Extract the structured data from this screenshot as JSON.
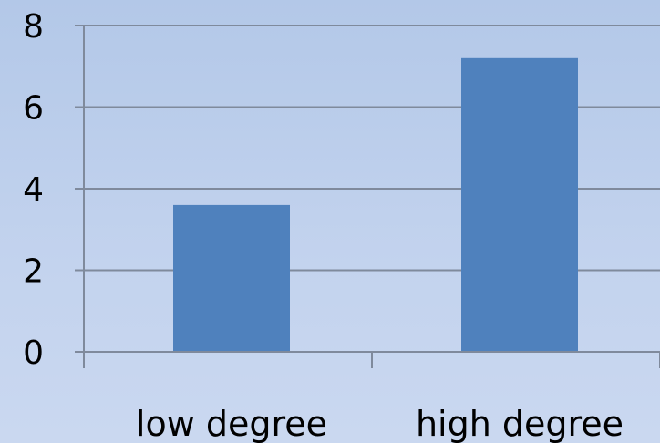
{
  "chart_data": {
    "type": "bar",
    "categories": [
      "low degree",
      "high degree"
    ],
    "values": [
      3.6,
      7.2
    ],
    "ylim": [
      0,
      8
    ],
    "yticks": [
      0,
      2,
      4,
      6,
      8
    ],
    "grid": true,
    "bar_color": "#4f81bd",
    "title": "",
    "xlabel": "",
    "ylabel": ""
  }
}
